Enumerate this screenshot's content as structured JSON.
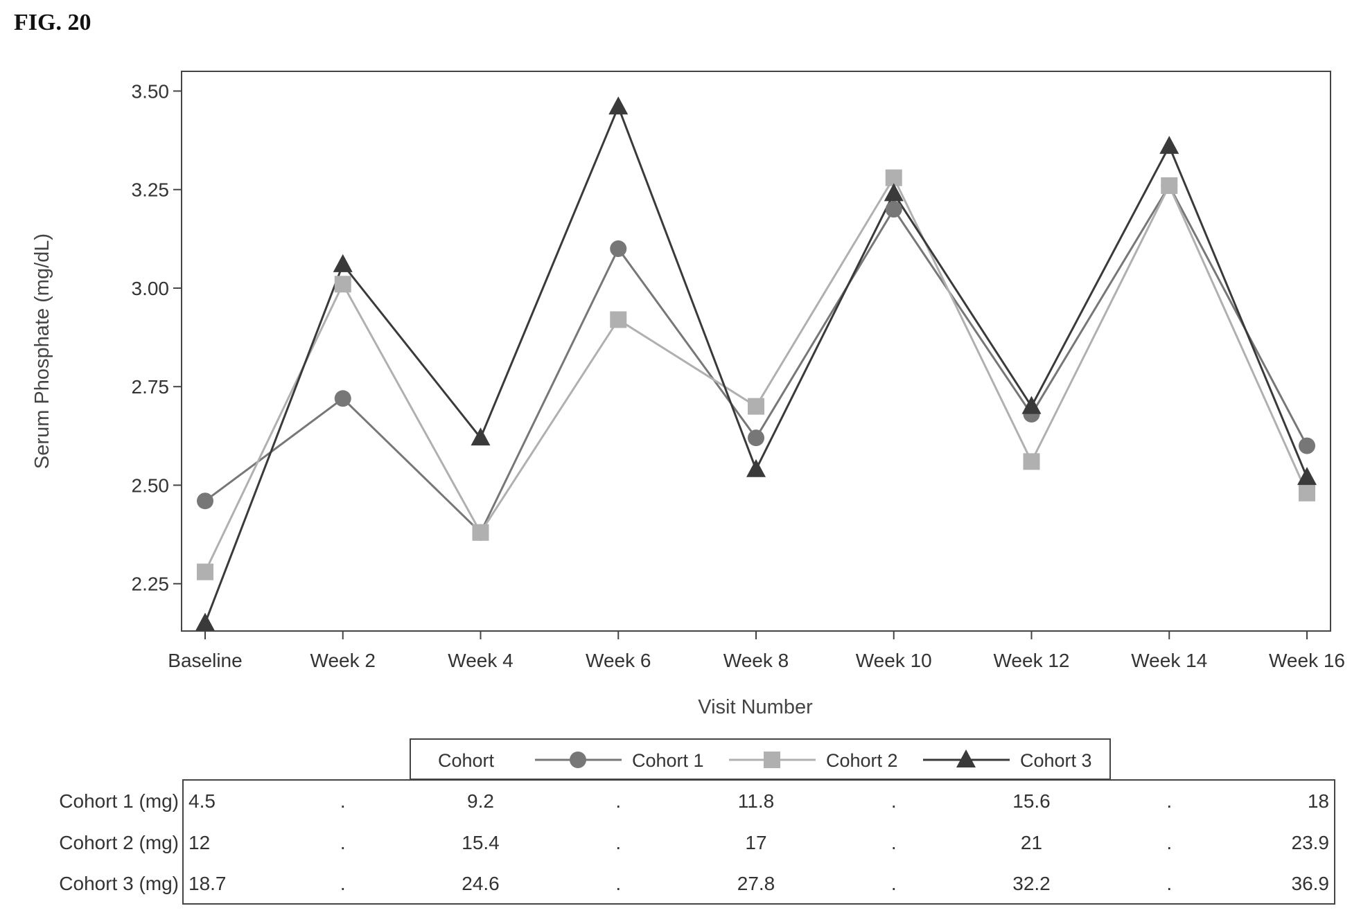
{
  "figure_label": "FIG. 20",
  "chart_data": {
    "type": "line",
    "xlabel": "Visit Number",
    "ylabel": "Serum Phosphate (mg/dL)",
    "categories": [
      "Baseline",
      "Week 2",
      "Week 4",
      "Week 6",
      "Week 8",
      "Week 10",
      "Week 12",
      "Week 14",
      "Week 16"
    ],
    "ylim": [
      2.13,
      3.55
    ],
    "yticks": [
      "2.25",
      "2.50",
      "2.75",
      "3.00",
      "3.25",
      "3.50"
    ],
    "grid": false,
    "legend": {
      "title": "Cohort",
      "placement": "bottom-center",
      "entries": [
        "Cohort 1",
        "Cohort 2",
        "Cohort 3"
      ]
    },
    "series": [
      {
        "name": "Cohort 1",
        "marker": "circle",
        "color": "#777777",
        "values": [
          2.46,
          2.72,
          2.38,
          3.1,
          2.62,
          3.2,
          2.68,
          3.26,
          2.6
        ]
      },
      {
        "name": "Cohort 2",
        "marker": "square",
        "color": "#b0b0b0",
        "values": [
          2.28,
          3.01,
          2.38,
          2.92,
          2.7,
          3.28,
          2.56,
          3.26,
          2.48
        ]
      },
      {
        "name": "Cohort 3",
        "marker": "triangle",
        "color": "#3a3a3a",
        "values": [
          2.15,
          3.06,
          2.62,
          3.46,
          2.54,
          3.24,
          2.7,
          3.36,
          2.52
        ]
      }
    ],
    "dose_table": {
      "rows": [
        {
          "label": "Cohort 1 (mg)",
          "values": [
            "4.5",
            ".",
            "9.2",
            ".",
            "11.8",
            ".",
            "15.6",
            ".",
            "18"
          ]
        },
        {
          "label": "Cohort 2 (mg)",
          "values": [
            "12",
            ".",
            "15.4",
            ".",
            "17",
            ".",
            "21",
            ".",
            "23.9"
          ]
        },
        {
          "label": "Cohort 3 (mg)",
          "values": [
            "18.7",
            ".",
            "24.6",
            ".",
            "27.8",
            ".",
            "32.2",
            ".",
            "36.9"
          ]
        }
      ]
    }
  }
}
